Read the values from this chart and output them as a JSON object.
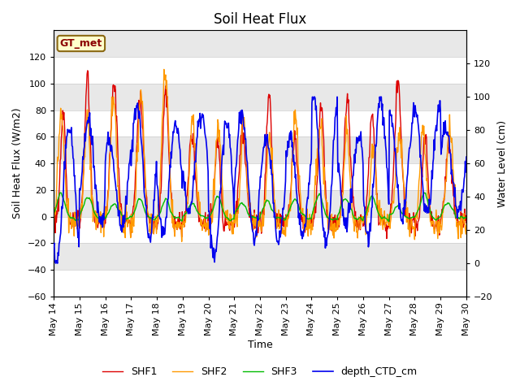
{
  "title": "Soil Heat Flux",
  "xlabel": "Time",
  "ylabel_left": "Soil Heat Flux (W/m2)",
  "ylabel_right": "Water Level (cm)",
  "annotation_text": "GT_met",
  "ylim_left": [
    -60,
    140
  ],
  "ylim_right": [
    -20,
    140
  ],
  "yticks_left": [
    -60,
    -40,
    -20,
    0,
    20,
    40,
    60,
    80,
    100,
    120
  ],
  "yticks_right": [
    -20,
    0,
    20,
    40,
    60,
    80,
    100,
    120
  ],
  "shf1_color": "#dd0000",
  "shf2_color": "#ff9900",
  "shf3_color": "#00bb00",
  "ctd_color": "#0000ee",
  "plot_bg": "#e8e8e8",
  "band_color_light": "#e8e8e8",
  "band_color_dark": "#d0d0d0",
  "title_fontsize": 12,
  "axis_label_fontsize": 9,
  "tick_fontsize": 8,
  "legend_fontsize": 9,
  "n_days": 16,
  "points_per_day": 48
}
